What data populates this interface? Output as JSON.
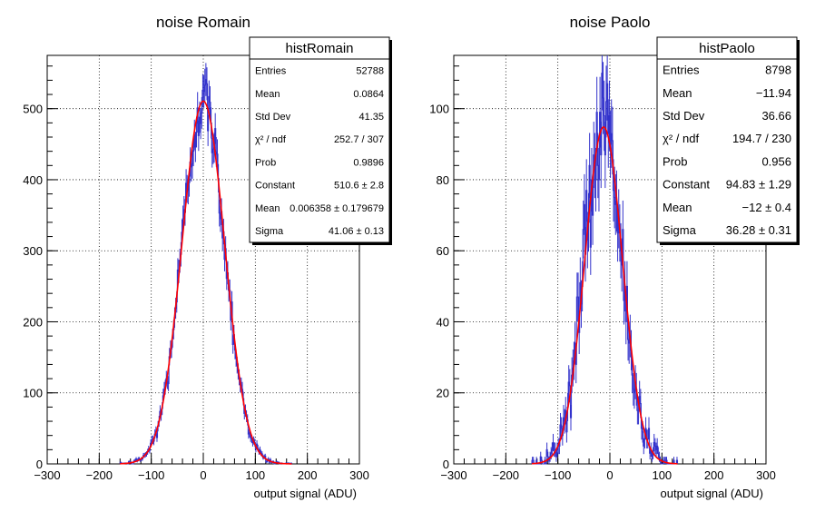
{
  "chart_data": [
    {
      "type": "histogram",
      "title": "noise Romain",
      "xlabel": "output signal (ADU)",
      "ylabel": "",
      "xlim": [
        -300,
        300
      ],
      "ylim": [
        0,
        575
      ],
      "xticks": [
        -300,
        -200,
        -100,
        0,
        100,
        200,
        300
      ],
      "xtick_labels": [
        "−300",
        "−200",
        "−100",
        "0",
        "100",
        "200",
        "300"
      ],
      "yticks": [
        0,
        100,
        200,
        300,
        400,
        500
      ],
      "ytick_labels": [
        "0",
        "100",
        "200",
        "300",
        "400",
        "500"
      ],
      "grid": true,
      "histogram_color": "#3333cc",
      "fit_color": "#ff0000",
      "fit": {
        "function": "gaus",
        "constant": 510.6,
        "mean": 0.006358,
        "sigma": 41.06
      },
      "stats_box": {
        "name": "histRomain",
        "placement": "top-right",
        "rows": [
          {
            "label": "Entries",
            "value": "52788"
          },
          {
            "label": "Mean",
            "value": "0.0864"
          },
          {
            "label": "Std Dev",
            "value": "41.35"
          },
          {
            "label": "χ² / ndf",
            "value": "252.7 / 307"
          },
          {
            "label": "Prob",
            "value": "0.9896"
          },
          {
            "label": "Constant",
            "value": "510.6 ± 2.8"
          },
          {
            "label": "Mean",
            "value": "0.006358 ± 0.179679"
          },
          {
            "label": "Sigma",
            "value": "41.06 ± 0.13"
          }
        ]
      },
      "bins": {
        "x_start": -160,
        "x_end": 170,
        "width": 2,
        "total_entries": 52788,
        "distribution": "gaussian, mean 0.0864, std dev 41.35, peak near 510"
      }
    },
    {
      "type": "histogram",
      "title": "noise Paolo",
      "xlabel": "output signal (ADU)",
      "ylabel": "",
      "xlim": [
        -300,
        300
      ],
      "ylim": [
        0,
        115
      ],
      "xticks": [
        -300,
        -200,
        -100,
        0,
        100,
        200,
        300
      ],
      "xtick_labels": [
        "−300",
        "−200",
        "−100",
        "0",
        "100",
        "200",
        "300"
      ],
      "yticks": [
        0,
        20,
        40,
        60,
        80,
        100
      ],
      "ytick_labels": [
        "0",
        "20",
        "40",
        "60",
        "80",
        "100"
      ],
      "grid": true,
      "histogram_color": "#3333cc",
      "fit_color": "#ff0000",
      "fit": {
        "function": "gaus",
        "constant": 94.83,
        "mean": -12,
        "sigma": 36.28
      },
      "stats_box": {
        "name": "histPaolo",
        "placement": "top-right",
        "rows": [
          {
            "label": "Entries",
            "value": "8798"
          },
          {
            "label": "Mean",
            "value": "−11.94"
          },
          {
            "label": "Std Dev",
            "value": "36.66"
          },
          {
            "label": "χ² / ndf",
            "value": "194.7 / 230"
          },
          {
            "label": "Prob",
            "value": "0.956"
          },
          {
            "label": "Constant",
            "value": "94.83 ± 1.29"
          },
          {
            "label": "Mean",
            "value": "−12 ± 0.4"
          },
          {
            "label": "Sigma",
            "value": "36.28 ± 0.31"
          }
        ]
      },
      "bins": {
        "x_start": -150,
        "x_end": 130,
        "width": 2,
        "total_entries": 8798,
        "distribution": "gaussian, mean -11.94, std dev 36.66, peak near 95 with fluctuations up to ~108"
      }
    }
  ]
}
